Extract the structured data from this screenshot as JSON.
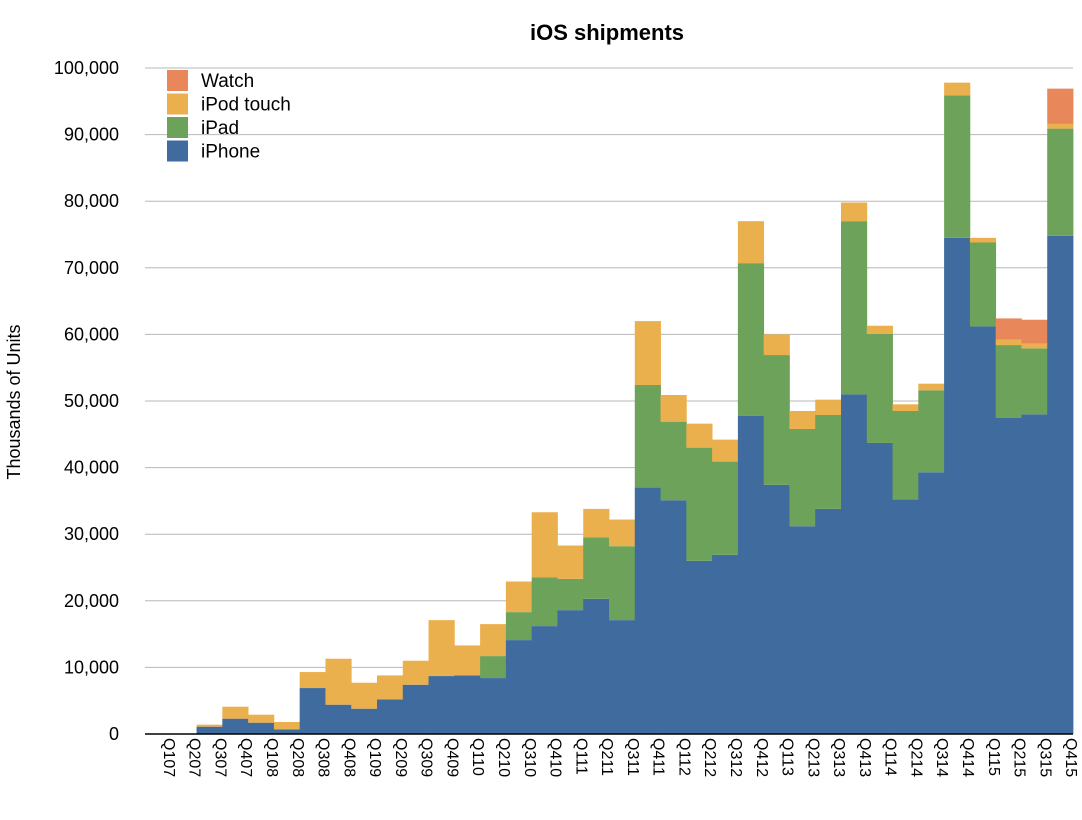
{
  "chart_data": {
    "type": "bar",
    "stacked": true,
    "title": "iOS shipments",
    "xlabel": "",
    "ylabel": "Thousands of Units",
    "ylim": [
      0,
      100000
    ],
    "yticks": [
      "0",
      "10,000",
      "20,000",
      "30,000",
      "40,000",
      "50,000",
      "60,000",
      "70,000",
      "80,000",
      "90,000",
      "100,000"
    ],
    "grid": true,
    "legend_position": "top-left",
    "categories": [
      "Q107",
      "Q207",
      "Q307",
      "Q407",
      "Q108",
      "Q208",
      "Q308",
      "Q408",
      "Q109",
      "Q209",
      "Q309",
      "Q409",
      "Q110",
      "Q210",
      "Q310",
      "Q410",
      "Q111",
      "Q211",
      "Q311",
      "Q411",
      "Q112",
      "Q212",
      "Q312",
      "Q412",
      "Q113",
      "Q213",
      "Q313",
      "Q413",
      "Q114",
      "Q214",
      "Q314",
      "Q414",
      "Q115",
      "Q215",
      "Q315",
      "Q415"
    ],
    "series": [
      {
        "name": "iPhone",
        "color": "#3F6B9E",
        "values": [
          0,
          0,
          1100,
          2300,
          1700,
          700,
          6900,
          4400,
          3800,
          5200,
          7400,
          8700,
          8800,
          8400,
          14100,
          16200,
          18600,
          20300,
          17100,
          37000,
          35100,
          26000,
          26900,
          47800,
          37400,
          31200,
          33800,
          51000,
          43700,
          35200,
          39300,
          74500,
          61200,
          47500,
          48000,
          74800
        ]
      },
      {
        "name": "iPad",
        "color": "#6DA25A",
        "values": [
          0,
          0,
          0,
          0,
          0,
          0,
          0,
          0,
          0,
          0,
          0,
          0,
          0,
          3300,
          4200,
          7300,
          4700,
          9200,
          11100,
          15400,
          11800,
          17000,
          14000,
          22900,
          19500,
          14600,
          14100,
          26000,
          16400,
          13300,
          12300,
          21400,
          12600,
          10900,
          9900,
          16100
        ]
      },
      {
        "name": "iPod touch",
        "color": "#EBB04E",
        "values": [
          0,
          0,
          300,
          1800,
          1200,
          1100,
          2400,
          6900,
          3900,
          3600,
          3600,
          8400,
          4500,
          4800,
          4600,
          9800,
          5000,
          4300,
          4000,
          9600,
          4000,
          3600,
          3300,
          6300,
          3100,
          2700,
          2300,
          2800,
          1200,
          1000,
          1000,
          1900,
          700,
          800,
          700,
          700
        ]
      },
      {
        "name": "Watch",
        "color": "#E8875A",
        "values": [
          0,
          0,
          0,
          0,
          0,
          0,
          0,
          0,
          0,
          0,
          0,
          0,
          0,
          0,
          0,
          0,
          0,
          0,
          0,
          0,
          0,
          0,
          0,
          0,
          0,
          0,
          0,
          0,
          0,
          0,
          0,
          0,
          0,
          3200,
          3600,
          5300
        ]
      }
    ],
    "legend_order": [
      "Watch",
      "iPod touch",
      "iPad",
      "iPhone"
    ]
  }
}
